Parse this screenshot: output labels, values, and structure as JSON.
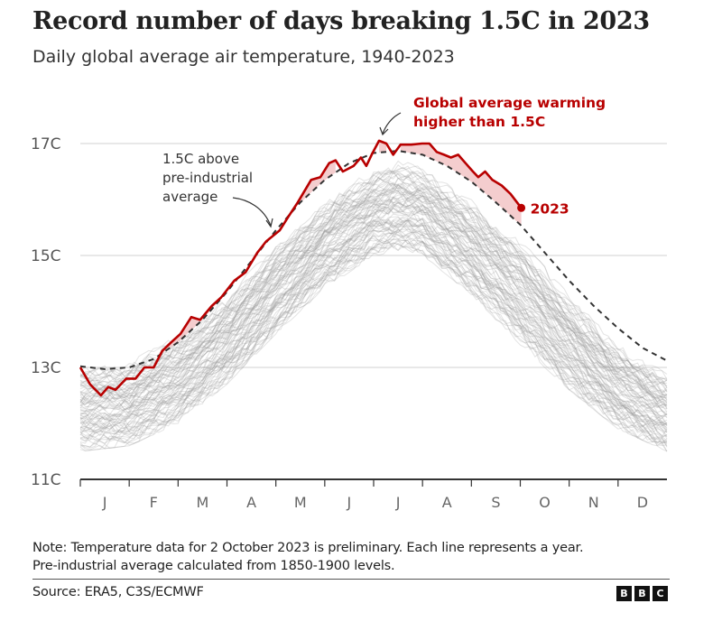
{
  "header": {
    "title": "Record number of days breaking 1.5C in 2023",
    "subtitle": "Daily global average air temperature, 1940-2023"
  },
  "footer": {
    "note_line1": "Note: Temperature data for 2 October 2023 is preliminary. Each line represents a year.",
    "note_line2": "Pre-industrial average calculated from 1850-1900 levels.",
    "source": "Source: ERA5, C3S/ECMWF",
    "logo_letters": [
      "B",
      "B",
      "C"
    ]
  },
  "colors": {
    "highlight": "#b80000",
    "highlight_fill": "#f2c4c6",
    "historical_lines": "#9a9a9a",
    "threshold_line": "#333333",
    "gridline": "#d0d0d0",
    "axis": "#333333"
  },
  "chart_data": {
    "type": "line",
    "title": "Record number of days breaking 1.5C in 2023",
    "subtitle": "Daily global average air temperature, 1940-2023",
    "xlabel": "",
    "ylabel": "",
    "x_unit": "month index (0 = 1 Jan, 12 = 31 Dec)",
    "xlim": [
      0,
      12
    ],
    "ylim": [
      11,
      17.6
    ],
    "y_ticks": [
      11,
      13,
      15,
      17
    ],
    "y_tick_labels": [
      "11C",
      "13C",
      "15C",
      "17C"
    ],
    "x_tick_labels": [
      "J",
      "F",
      "M",
      "A",
      "M",
      "J",
      "J",
      "A",
      "S",
      "O",
      "N",
      "D"
    ],
    "grid": "horizontal",
    "annotations": [
      {
        "text_lines": [
          "1.5C above",
          "pre-industrial",
          "average"
        ],
        "style": "normal",
        "points_to": "threshold line in April"
      },
      {
        "text_lines": [
          "Global average warming",
          "higher than 1.5C"
        ],
        "style": "bold-red",
        "points_to": "early July 2023 peak"
      },
      {
        "text": "2023",
        "style": "bold-red",
        "points_to": "end of 2023 series (2 October)"
      }
    ],
    "series": [
      {
        "name": "2023",
        "style": "solid-red",
        "x": [
          0,
          0.2,
          0.42,
          0.57,
          0.72,
          0.94,
          1.13,
          1.31,
          1.5,
          1.68,
          1.86,
          2.05,
          2.27,
          2.45,
          2.69,
          2.88,
          3.15,
          3.38,
          3.62,
          3.8,
          4.08,
          4.26,
          4.45,
          4.72,
          4.91,
          5.09,
          5.22,
          5.37,
          5.59,
          5.74,
          5.85,
          5.96,
          6.11,
          6.26,
          6.4,
          6.55,
          6.77,
          6.99,
          7.14,
          7.29,
          7.44,
          7.58,
          7.73,
          7.88,
          8.03,
          8.14,
          8.28,
          8.43,
          8.62,
          8.8,
          9.02
        ],
        "values": [
          13.0,
          12.7,
          12.5,
          12.65,
          12.6,
          12.8,
          12.8,
          13.0,
          13.0,
          13.3,
          13.45,
          13.6,
          13.9,
          13.85,
          14.1,
          14.25,
          14.55,
          14.7,
          15.05,
          15.25,
          15.45,
          15.7,
          15.95,
          16.35,
          16.4,
          16.65,
          16.7,
          16.5,
          16.6,
          16.75,
          16.6,
          16.8,
          17.05,
          17.0,
          16.8,
          16.98,
          16.98,
          17.0,
          17.0,
          16.85,
          16.8,
          16.75,
          16.8,
          16.65,
          16.5,
          16.4,
          16.5,
          16.35,
          16.25,
          16.1,
          15.85
        ]
      },
      {
        "name": "1.5C above pre-industrial average",
        "style": "dashed-black",
        "x": [
          0,
          0.5,
          1,
          1.5,
          2,
          2.5,
          3,
          3.5,
          4,
          4.5,
          5,
          5.5,
          6,
          6.5,
          7,
          7.5,
          8,
          8.5,
          9,
          9.5,
          10,
          10.5,
          11,
          11.5,
          12
        ],
        "values": [
          13.02,
          12.97,
          13.0,
          13.15,
          13.45,
          13.85,
          14.35,
          14.9,
          15.45,
          15.95,
          16.35,
          16.65,
          16.83,
          16.87,
          16.8,
          16.6,
          16.32,
          15.95,
          15.55,
          15.05,
          14.55,
          14.1,
          13.7,
          13.35,
          13.12
        ]
      },
      {
        "name": "1940-2022 (each line represents a year)",
        "style": "thin-grey",
        "count": 83,
        "envelope_x": [
          0,
          1,
          2,
          3,
          4,
          5,
          6,
          6.5,
          7,
          8,
          9,
          10,
          11,
          12
        ],
        "envelope_low": [
          11.5,
          11.6,
          12.0,
          12.7,
          13.6,
          14.4,
          15.0,
          15.05,
          15.0,
          14.3,
          13.4,
          12.6,
          11.9,
          11.5
        ],
        "envelope_high": [
          13.05,
          13.1,
          13.6,
          14.3,
          15.2,
          16.0,
          16.55,
          16.7,
          16.6,
          16.0,
          15.3,
          14.3,
          13.4,
          12.9
        ]
      }
    ]
  }
}
